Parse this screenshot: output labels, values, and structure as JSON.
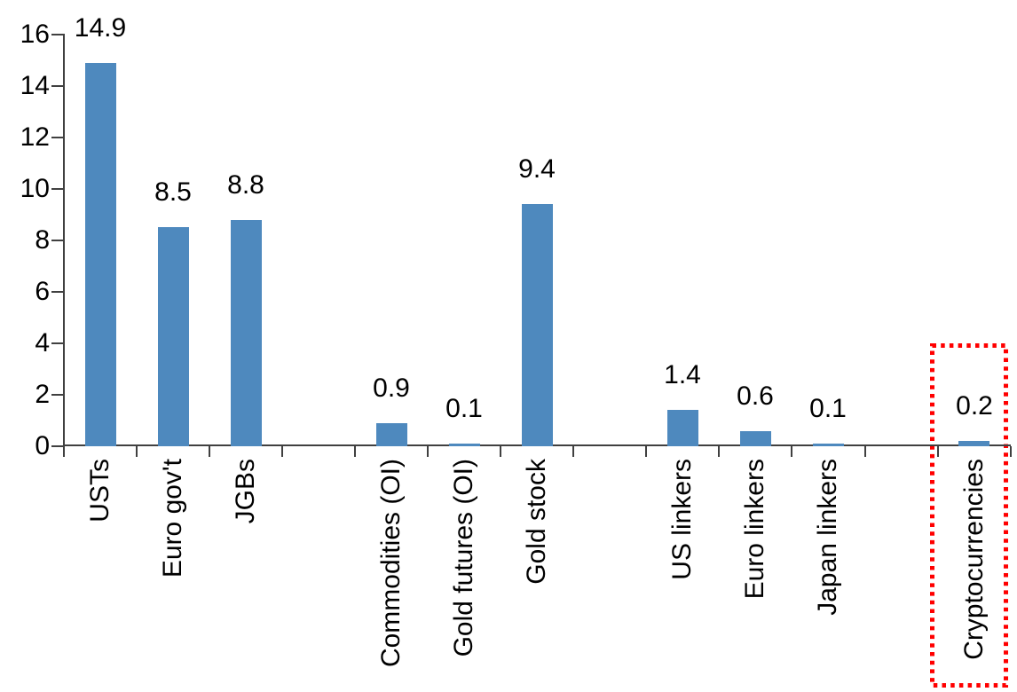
{
  "chart_data": {
    "type": "bar",
    "title": "",
    "xlabel": "",
    "ylabel": "",
    "categories": [
      "USTs",
      "Euro gov't",
      "JGBs",
      "",
      "Commodities (OI)",
      "Gold futures (OI)",
      "Gold stock",
      "",
      "US linkers",
      "Euro linkers",
      "Japan linkers",
      "",
      "Cryptocurrencies"
    ],
    "values": [
      14.9,
      8.5,
      8.8,
      null,
      0.9,
      0.1,
      9.4,
      null,
      1.4,
      0.6,
      0.1,
      null,
      0.2
    ],
    "data_labels": [
      "14.9",
      "8.5",
      "8.8",
      "",
      "0.9",
      "0.1",
      "9.4",
      "",
      "1.4",
      "0.6",
      "0.1",
      "",
      "0.2"
    ],
    "ylim": [
      0,
      16
    ],
    "yticks": [
      0,
      2,
      4,
      6,
      8,
      10,
      12,
      14,
      16
    ],
    "grid": false,
    "legend": null,
    "bar_color": "#4E89BE",
    "axis_color": "#404040",
    "text_color": "#000000",
    "highlight": {
      "category": "Cryptocurrencies",
      "category_index": 12,
      "shape": "dotted-rectangle",
      "color": "#FF0000"
    }
  }
}
